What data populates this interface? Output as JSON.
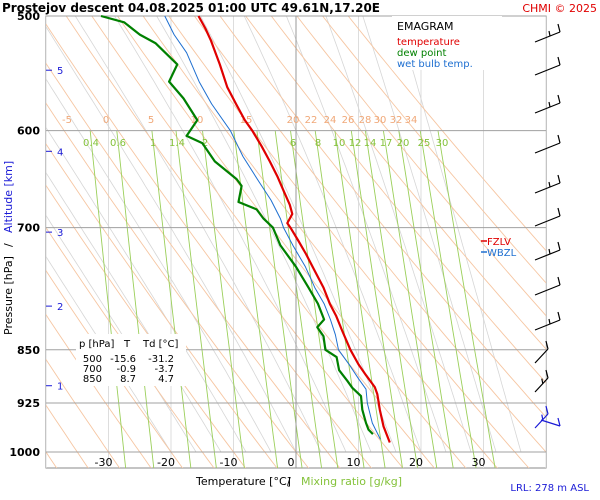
{
  "header": {
    "title": "Prostejov   descent   04.08.2025 01:00 UTC  49.61N,17.20E",
    "copyright": "CHMI © 2025"
  },
  "chart_data": {
    "type": "line",
    "title": "EMAGRAM",
    "xlabel": "Temperature [°C]",
    "xlabel_sep": "/",
    "xlabel2": "Mixing ratio [g/kg]",
    "ylabel": "Pressure [hPa]",
    "ylabel_sep": "/",
    "ylabel2": "Altitude [km]",
    "xlim": [
      -40,
      40
    ],
    "ylim": [
      1000,
      500
    ],
    "y_scale": "log",
    "x_ticks": [
      -30,
      -20,
      -10,
      0,
      10,
      20,
      30
    ],
    "y_ticks": [
      500,
      600,
      700,
      850,
      925,
      1000
    ],
    "altitude_ticks": [
      {
        "km": "1",
        "p": 900
      },
      {
        "km": "2",
        "p": 793
      },
      {
        "km": "3",
        "p": 705
      },
      {
        "km": "4",
        "p": 620
      },
      {
        "km": "5",
        "p": 545
      }
    ],
    "dry_adiabat_labels": [
      "-5",
      "0",
      "5",
      "10",
      "15",
      "20",
      "22",
      "24",
      "26",
      "28",
      "30",
      "32",
      "34"
    ],
    "mixing_ratio_labels": [
      "0.4",
      "0.6",
      "1",
      "1.4",
      "2",
      "6",
      "8",
      "10",
      "12",
      "14",
      "17",
      "20",
      "25",
      "30"
    ],
    "legend": {
      "title": "EMAGRAM",
      "position": "top-right",
      "items": [
        {
          "label": "temperature",
          "color": "#e00000"
        },
        {
          "label": "dew point",
          "color": "#008000"
        },
        {
          "label": "wet bulb temp.",
          "color": "#1e6fd0"
        }
      ]
    },
    "markers": [
      {
        "label": "FZLV",
        "color": "#e00000"
      },
      {
        "label": "WBZL",
        "color": "#1e6fd0"
      }
    ],
    "table": {
      "headers": [
        "p [hPa]",
        "T",
        "Td [°C]"
      ],
      "rows": [
        [
          "500",
          "-15.6",
          "-31.2"
        ],
        [
          "700",
          "-0.9",
          "-3.7"
        ],
        [
          "850",
          "8.7",
          "4.7"
        ]
      ]
    },
    "lrl_text": "LRL: 278 m ASL",
    "series": [
      {
        "name": "temperature",
        "color": "#e00000",
        "points": [
          [
            -15.6,
            500
          ],
          [
            -14.5,
            510
          ],
          [
            -13.6,
            520
          ],
          [
            -12.2,
            540
          ],
          [
            -11.0,
            560
          ],
          [
            -9.6,
            575
          ],
          [
            -8.2,
            590
          ],
          [
            -7.0,
            600
          ],
          [
            -5.5,
            615
          ],
          [
            -4.2,
            630
          ],
          [
            -3.0,
            645
          ],
          [
            -2.0,
            660
          ],
          [
            -1.0,
            675
          ],
          [
            -0.6,
            685
          ],
          [
            -1.4,
            695
          ],
          [
            -0.9,
            700
          ],
          [
            0.4,
            715
          ],
          [
            1.6,
            730
          ],
          [
            3.0,
            750
          ],
          [
            4.4,
            770
          ],
          [
            5.4,
            790
          ],
          [
            6.4,
            805
          ],
          [
            7.4,
            825
          ],
          [
            8.7,
            850
          ],
          [
            10.0,
            870
          ],
          [
            11.2,
            885
          ],
          [
            12.6,
            902
          ],
          [
            13.0,
            912
          ],
          [
            13.4,
            935
          ],
          [
            14.0,
            960
          ],
          [
            15.0,
            985
          ]
        ]
      },
      {
        "name": "dew point",
        "color": "#008000",
        "points": [
          [
            -31.2,
            500
          ],
          [
            -27.5,
            505
          ],
          [
            -25.0,
            515
          ],
          [
            -22.5,
            522
          ],
          [
            -19.0,
            540
          ],
          [
            -20.3,
            555
          ],
          [
            -18.0,
            570
          ],
          [
            -15.8,
            590
          ],
          [
            -17.5,
            605
          ],
          [
            -15.0,
            612
          ],
          [
            -13.0,
            630
          ],
          [
            -9.5,
            648
          ],
          [
            -8.7,
            655
          ],
          [
            -9.2,
            672
          ],
          [
            -6.3,
            680
          ],
          [
            -5.2,
            690
          ],
          [
            -3.7,
            700
          ],
          [
            -2.5,
            720
          ],
          [
            0.0,
            745
          ],
          [
            2.0,
            770
          ],
          [
            3.5,
            790
          ],
          [
            4.5,
            810
          ],
          [
            3.4,
            820
          ],
          [
            4.4,
            832
          ],
          [
            4.7,
            850
          ],
          [
            6.5,
            860
          ],
          [
            6.9,
            878
          ],
          [
            8.2,
            893
          ],
          [
            9.0,
            903
          ],
          [
            10.4,
            915
          ],
          [
            10.6,
            935
          ],
          [
            11.2,
            955
          ],
          [
            11.6,
            965
          ],
          [
            12.3,
            972
          ]
        ]
      },
      {
        "name": "wet bulb temp.",
        "color": "#1e6fd0",
        "points": [
          [
            -21.0,
            500
          ],
          [
            -19.5,
            515
          ],
          [
            -17.5,
            530
          ],
          [
            -15.5,
            555
          ],
          [
            -13.5,
            575
          ],
          [
            -10.5,
            600
          ],
          [
            -8.5,
            625
          ],
          [
            -6.0,
            650
          ],
          [
            -4.0,
            670
          ],
          [
            -2.5,
            690
          ],
          [
            -2.0,
            700
          ],
          [
            -0.5,
            720
          ],
          [
            1.5,
            745
          ],
          [
            3.0,
            770
          ],
          [
            4.5,
            790
          ],
          [
            5.5,
            810
          ],
          [
            6.3,
            830
          ],
          [
            6.8,
            850
          ],
          [
            8.5,
            870
          ],
          [
            10.0,
            890
          ],
          [
            11.2,
            905
          ],
          [
            11.4,
            925
          ],
          [
            12.2,
            955
          ],
          [
            13.5,
            980
          ]
        ]
      }
    ],
    "wind_barbs": {
      "color_low": "#1a1ad6",
      "color_high": "#000000",
      "count": 13
    }
  }
}
